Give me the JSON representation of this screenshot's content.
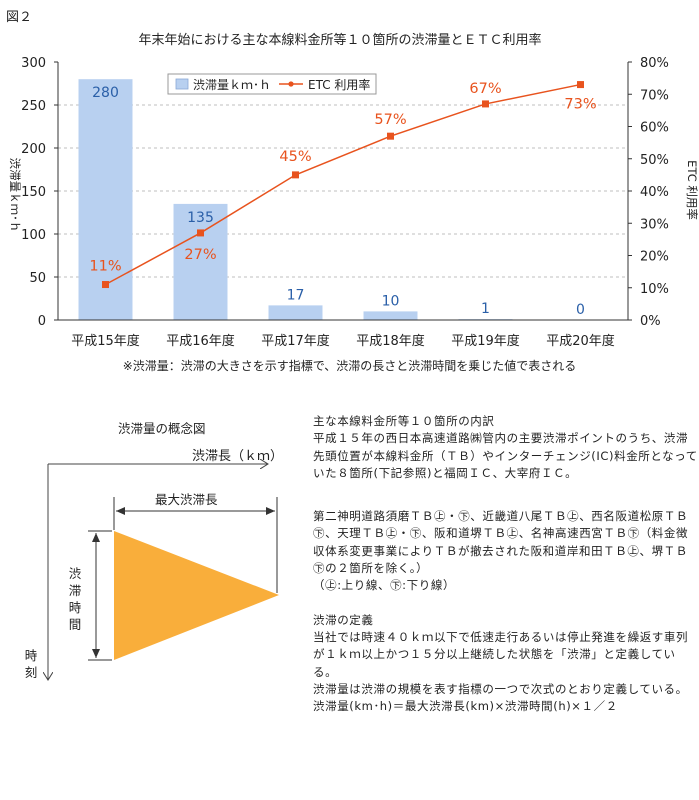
{
  "figure_label": "図２",
  "chart_data": {
    "type": "bar",
    "title": "年末年始における主な本線料金所等１０箇所の渋滞量とＥＴＣ利用率",
    "categories": [
      "平成15年度",
      "平成16年度",
      "平成17年度",
      "平成18年度",
      "平成19年度",
      "平成20年度"
    ],
    "series": [
      {
        "name": "渋滞量ｋｍ･ｈ",
        "type": "bar",
        "axis": "left",
        "values": [
          280,
          135,
          17,
          10,
          1,
          0
        ],
        "color": "#b8d0f0",
        "label_color": "#2a5fa8"
      },
      {
        "name": "ETC 利用率",
        "type": "line",
        "axis": "right",
        "values": [
          11,
          27,
          45,
          57,
          67,
          73
        ],
        "labels": [
          "11%",
          "27%",
          "45%",
          "57%",
          "67%",
          "73%"
        ],
        "color": "#e8531e"
      }
    ],
    "ylabel": "渋滞量ｋｍ･ｈ",
    "ylim": [
      0,
      300
    ],
    "yticks": [
      "0",
      "50",
      "100",
      "150",
      "200",
      "250",
      "300"
    ],
    "y2label": "ETC 利用率",
    "y2lim": [
      0,
      80
    ],
    "y2ticks": [
      "0%",
      "10%",
      "20%",
      "30%",
      "40%",
      "50%",
      "60%",
      "70%",
      "80%"
    ],
    "grid": true,
    "legend": "top-center"
  },
  "footnote": "※渋滞量：渋滞の大きさを示す指標で、渋滞の長さと渋滞時間を乗じた値で表される",
  "concept": {
    "title": "渋滞量の概念図",
    "x_axis_label": "渋滞長（ｋｍ）",
    "max_length_label": "最大渋滞長",
    "duration_label": "渋滞時間",
    "time_axis_label": "時刻",
    "triangle_color": "#f9ae3b"
  },
  "description": {
    "p1": "主な本線料金所等１０箇所の内訳\n平成１５年の西日本高速道路㈱管内の主要渋滞ポイントのうち、渋滞先頭位置が本線料金所（ＴＢ）やインターチェンジ(IC)料金所となっていた８箇所(下記参照)と福岡ＩＣ、大宰府ＩＣ。",
    "p2": "第二神明道路須磨ＴＢ㊤・㊦、近畿道八尾ＴＢ㊤、西名阪道松原ＴＢ㊦、天理ＴＢ㊤・㊦、阪和道堺ＴＢ㊤、名神高速西宮ＴＢ㊦（料金徴収体系変更事業によりＴＢが撤去された阪和道岸和田ＴＢ㊤、堺ＴＢ㊦の２箇所を除く。）\n（㊤:上り線、㊦:下り線）",
    "p3": "渋滞の定義\n当社では時速４０ｋｍ以下で低速走行あるいは停止発進を繰返す車列が１ｋｍ以上かつ１５分以上継続した状態を「渋滞」と定義している。\n渋滞量は渋滞の規模を表す指標の一つで次式のとおり定義している。\n渋滞量(km･h)＝最大渋滞長(km)×渋滞時間(h)×１／２"
  }
}
